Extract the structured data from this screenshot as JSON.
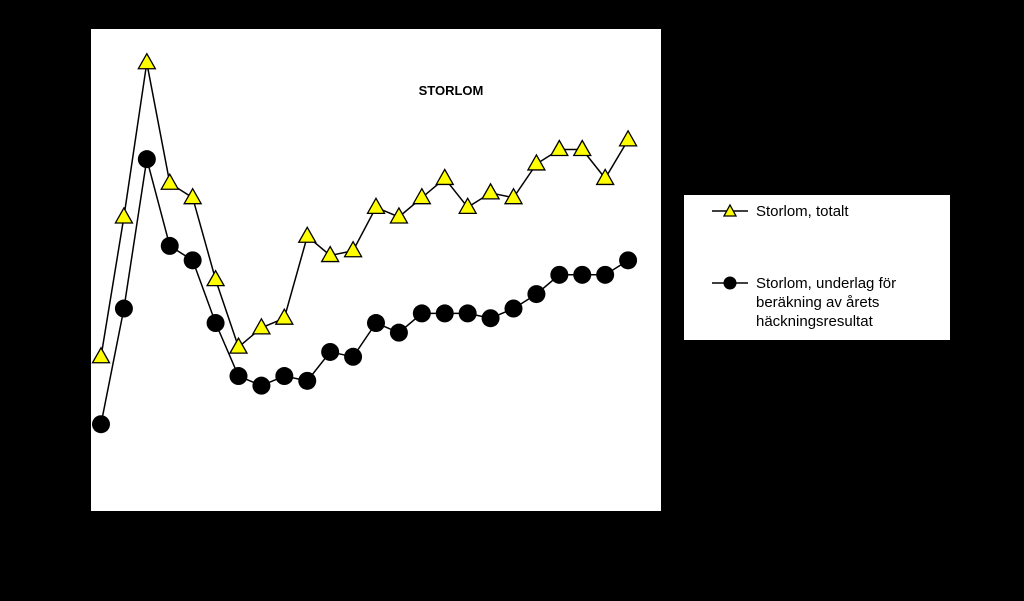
{
  "chart_data": {
    "type": "line",
    "title": "STORLOM",
    "xlabel": "",
    "ylabel": "",
    "grid": false,
    "legend_position": "right",
    "x": [
      1,
      2,
      3,
      4,
      5,
      6,
      7,
      8,
      9,
      10,
      11,
      12,
      13,
      14,
      15,
      16,
      17,
      18,
      19,
      20,
      21,
      22,
      23,
      24,
      25
    ],
    "ylim": [
      0,
      100
    ],
    "series": [
      {
        "name": "Storlom, totalt",
        "marker": "triangle",
        "color": "#FFFF00",
        "values": [
          32,
          61,
          93,
          68,
          65,
          48,
          34,
          38,
          40,
          57,
          53,
          54,
          63,
          61,
          65,
          69,
          63,
          66,
          65,
          72,
          75,
          75,
          69,
          77,
          null
        ]
      },
      {
        "name": "Storlom, underlag för beräkning av årets häckningsresultat",
        "name_lines": [
          "Storlom, underlag för",
          "beräkning av årets",
          "häckningsresultat"
        ],
        "marker": "circle",
        "color": "#000000",
        "values": [
          18,
          42,
          73,
          55,
          52,
          39,
          28,
          26,
          28,
          27,
          33,
          32,
          39,
          37,
          41,
          41,
          41,
          40,
          42,
          45,
          49,
          49,
          49,
          52,
          null
        ]
      }
    ]
  }
}
